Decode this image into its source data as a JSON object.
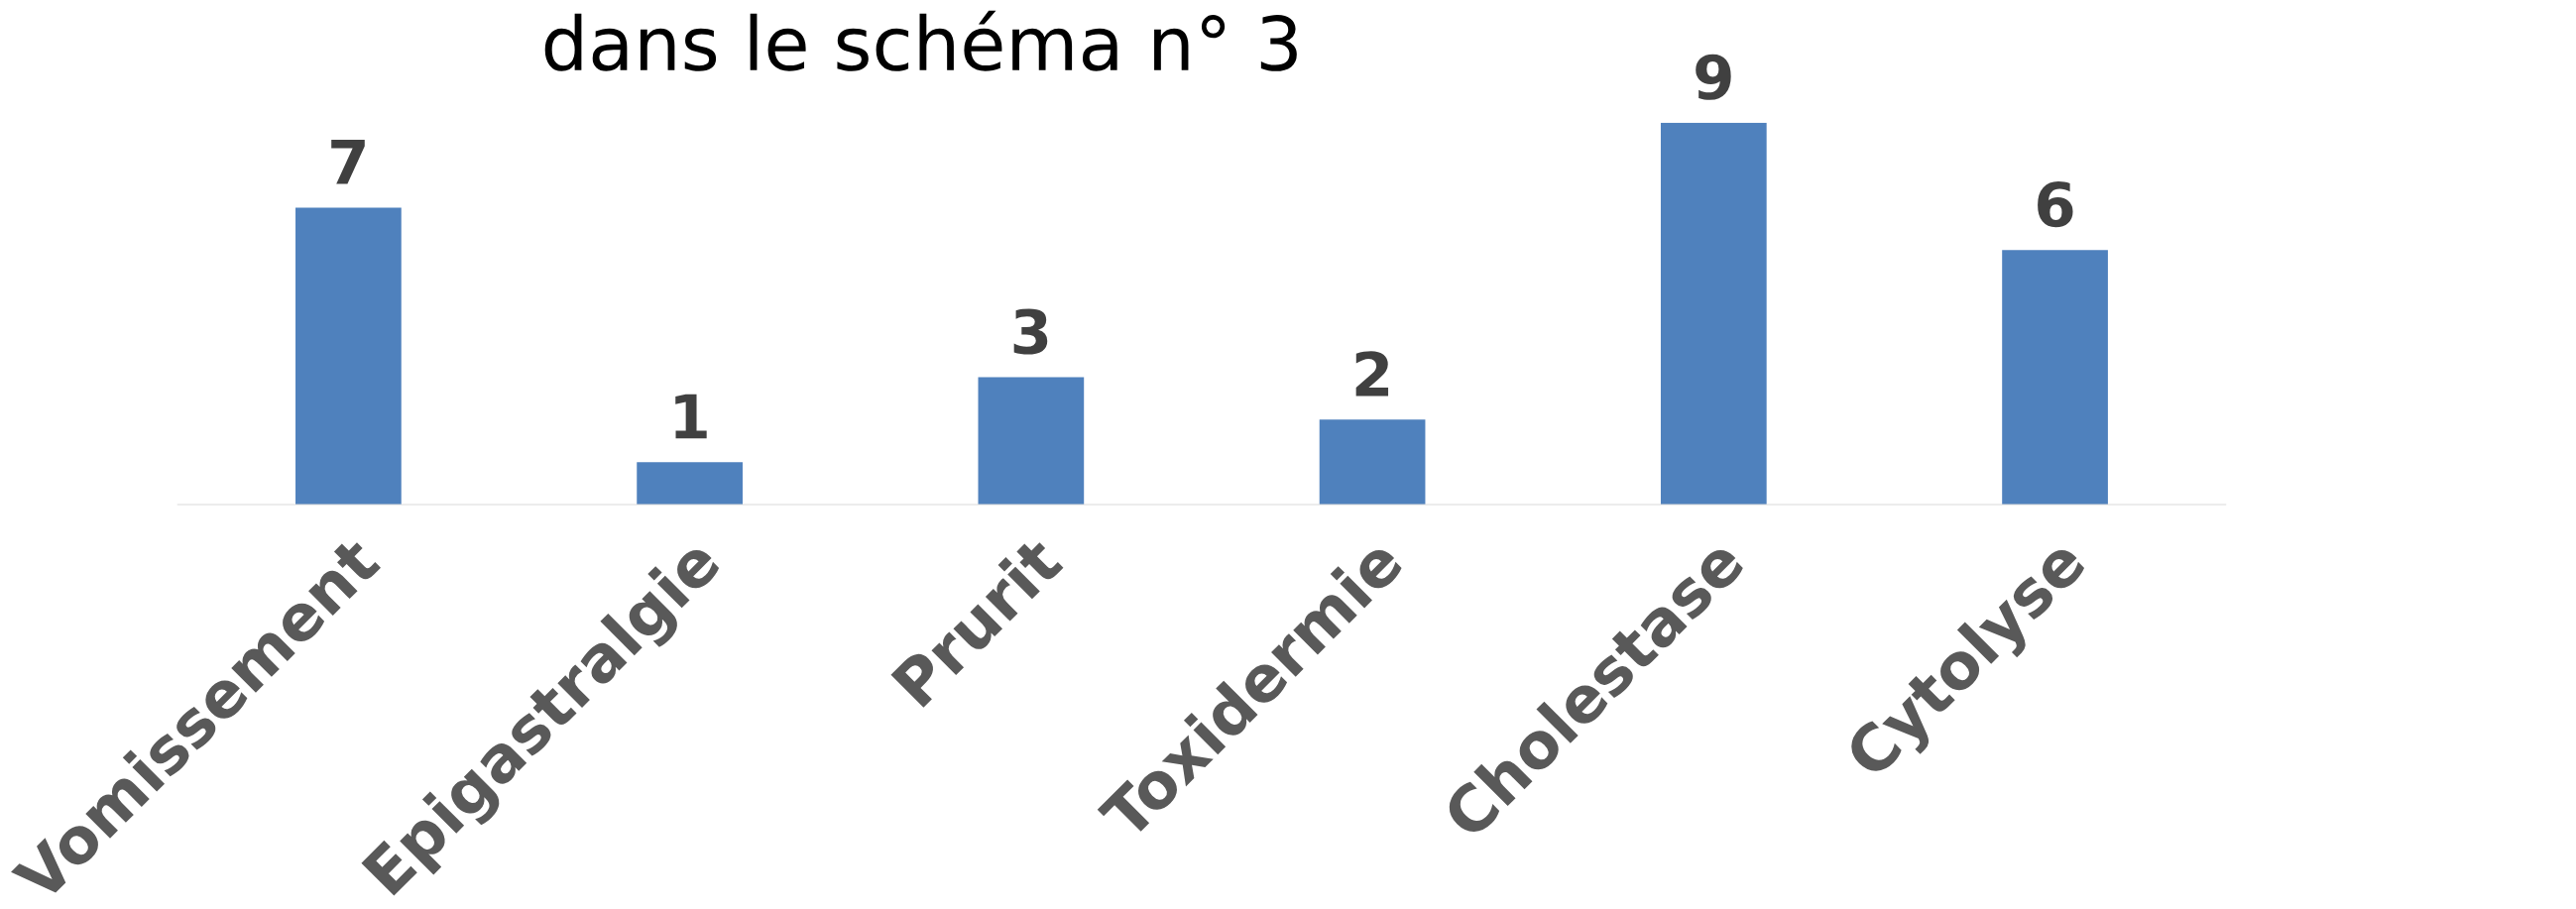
{
  "chart_data": {
    "type": "bar",
    "title": "dans le schéma n° 3",
    "categories": [
      "Vomissement",
      "Epigastralgie",
      "Prurit",
      "Toxidermie",
      "Cholestase",
      "Cytolyse"
    ],
    "values": [
      7,
      1,
      3,
      2,
      9,
      6
    ],
    "color": "#4f81bd",
    "data_labels": true
  }
}
